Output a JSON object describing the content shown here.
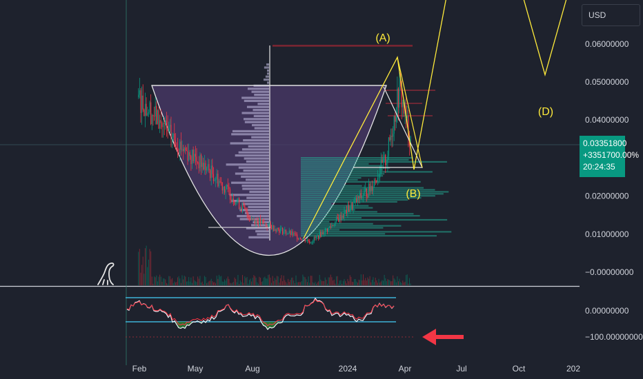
{
  "currency_label": "USD",
  "last_price": {
    "price": "0.03351800",
    "change": "+3351700.00%",
    "countdown": "20:24:35"
  },
  "colors": {
    "background": "#1e222d",
    "bull": "#089981",
    "bear": "#f23645",
    "pattern_line": "#ffeb3b",
    "cup_fill": "#4b3a6a",
    "oscillator_band": "#22ab94",
    "arrow": "#f23645"
  },
  "icons": [
    "dinosaur-icon",
    "left-arrow-icon"
  ],
  "chart_data": [
    {
      "type": "candlestick",
      "panel": "price",
      "y_axis_ticks": [
        "0.06000000",
        "0.05000000",
        "0.04000000",
        "0.02000000",
        "0.01000000",
        "−0.00000000"
      ],
      "y_tick_values": [
        0.06,
        0.05,
        0.04,
        0.02,
        0.01,
        0.0
      ],
      "ylim": [
        -0.0015,
        0.0705
      ],
      "x_axis_labels": [
        "Feb",
        "May",
        "Aug",
        "2024",
        "Apr",
        "Jul",
        "Oct",
        "202"
      ],
      "price_series_approx": [
        {
          "x": "2023-01-20",
          "y": 0.046
        },
        {
          "x": "2023-02-10",
          "y": 0.042
        },
        {
          "x": "2023-03-10",
          "y": 0.036
        },
        {
          "x": "2023-04-10",
          "y": 0.031
        },
        {
          "x": "2023-05-15",
          "y": 0.026
        },
        {
          "x": "2023-06-15",
          "y": 0.02
        },
        {
          "x": "2023-07-15",
          "y": 0.014
        },
        {
          "x": "2023-08-15",
          "y": 0.012
        },
        {
          "x": "2023-09-15",
          "y": 0.01
        },
        {
          "x": "2023-10-15",
          "y": 0.008
        },
        {
          "x": "2023-11-15",
          "y": 0.012
        },
        {
          "x": "2023-12-15",
          "y": 0.017
        },
        {
          "x": "2024-01-15",
          "y": 0.022
        },
        {
          "x": "2024-02-10",
          "y": 0.03
        },
        {
          "x": "2024-03-01",
          "y": 0.048
        },
        {
          "x": "2024-03-20",
          "y": 0.0335
        }
      ],
      "annotations": [
        {
          "text": "(A)",
          "x": "2024-03-01",
          "y": 0.0565
        },
        {
          "text": "(B)",
          "x": "2024-04-05",
          "y": 0.026
        },
        {
          "text": "(D)",
          "x": "2024-11-15",
          "y": 0.047
        }
      ],
      "last_price": 0.033518
    },
    {
      "type": "line",
      "panel": "oscillator",
      "y_axis_ticks": [
        "0.00000000",
        "−100.00000000"
      ],
      "y_tick_values": [
        0,
        -100
      ]
    }
  ]
}
